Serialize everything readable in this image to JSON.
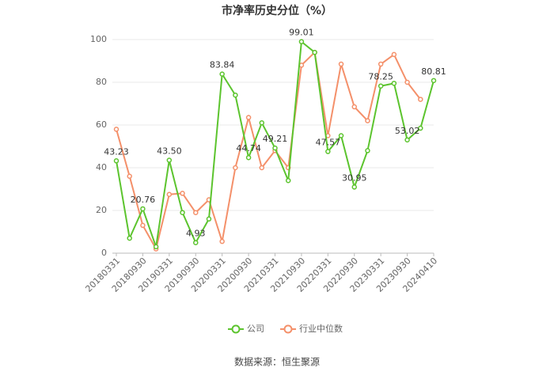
{
  "chart_data": {
    "type": "line",
    "title": "市净率历史分位（%）",
    "source": "数据来源：恒生聚源",
    "categories": [
      "20180331",
      null,
      "20180930",
      null,
      "20190331",
      null,
      "20190930",
      null,
      "20200331",
      null,
      "20200930",
      null,
      "20210331",
      null,
      "20210930",
      null,
      "20220331",
      null,
      "20220930",
      null,
      "20230331",
      null,
      "20230930",
      null,
      "20240410"
    ],
    "series": [
      {
        "name": "公司",
        "color": "#5cc42e",
        "values": [
          43.23,
          7,
          20.76,
          3,
          43.5,
          19,
          4.93,
          16,
          83.84,
          74,
          44.74,
          61,
          49.21,
          34,
          99.01,
          94,
          47.57,
          55,
          30.95,
          48,
          78.25,
          79.5,
          53.02,
          58.5,
          80.81
        ],
        "value_labels": [
          "43.23",
          null,
          "20.76",
          null,
          "43.50",
          null,
          "4.93",
          null,
          "83.84",
          null,
          "44.74",
          null,
          "49.21",
          null,
          "99.01",
          null,
          "47.57",
          null,
          "30.95",
          null,
          "78.25",
          null,
          "53.02",
          null,
          "80.81"
        ]
      },
      {
        "name": "行业中位数",
        "color": "#f4906a",
        "values": [
          58,
          36,
          13,
          2,
          27.5,
          28,
          19,
          25,
          5.5,
          40,
          63.5,
          40,
          48,
          40,
          88,
          94,
          55,
          88.5,
          68.5,
          62,
          88.5,
          93,
          80,
          72,
          null
        ]
      }
    ],
    "ylim": [
      0,
      100
    ],
    "yticks": [
      0,
      20,
      40,
      60,
      80,
      100
    ],
    "grid": true,
    "legend": "bottom"
  }
}
